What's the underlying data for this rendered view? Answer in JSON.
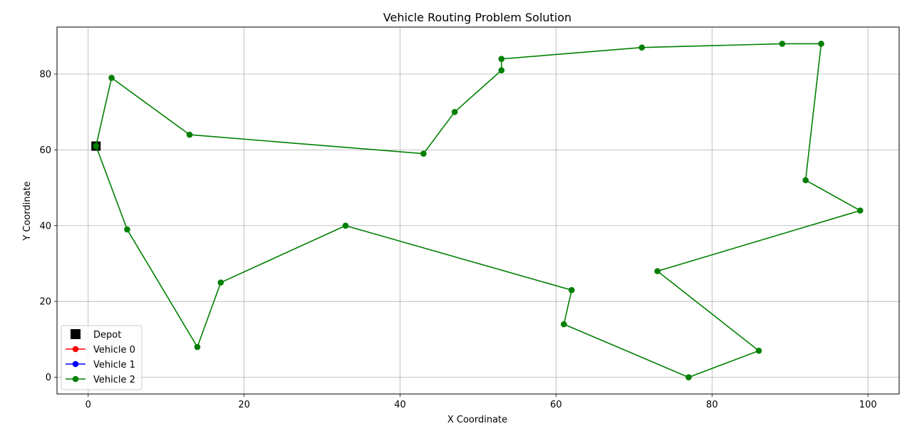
{
  "chart_data": {
    "type": "line",
    "title": "Vehicle Routing Problem Solution",
    "xlabel": "X Coordinate",
    "ylabel": "Y Coordinate",
    "xlim": [
      -4,
      104
    ],
    "ylim": [
      -4.4,
      92.4
    ],
    "xticks": [
      0,
      20,
      40,
      60,
      80,
      100
    ],
    "yticks": [
      0,
      20,
      40,
      60,
      80
    ],
    "grid": true,
    "legend_position": "lower-left",
    "depot": {
      "name": "Depot",
      "x": 1,
      "y": 61,
      "color": "#000000",
      "marker": "square"
    },
    "series": [
      {
        "name": "Vehicle 0",
        "color": "#ff0000",
        "points": []
      },
      {
        "name": "Vehicle 1",
        "color": "#0000ff",
        "points": []
      },
      {
        "name": "Vehicle 2",
        "color": "#008000",
        "points": [
          [
            1,
            61
          ],
          [
            3,
            79
          ],
          [
            13,
            64
          ],
          [
            43,
            59
          ],
          [
            47,
            70
          ],
          [
            53,
            81
          ],
          [
            53,
            84
          ],
          [
            71,
            87
          ],
          [
            89,
            88
          ],
          [
            94,
            88
          ],
          [
            92,
            52
          ],
          [
            99,
            44
          ],
          [
            73,
            28
          ],
          [
            86,
            7
          ],
          [
            77,
            0
          ],
          [
            61,
            14
          ],
          [
            62,
            23
          ],
          [
            33,
            40
          ],
          [
            17,
            25
          ],
          [
            14,
            8
          ],
          [
            5,
            39
          ],
          [
            1,
            61
          ]
        ]
      }
    ]
  }
}
